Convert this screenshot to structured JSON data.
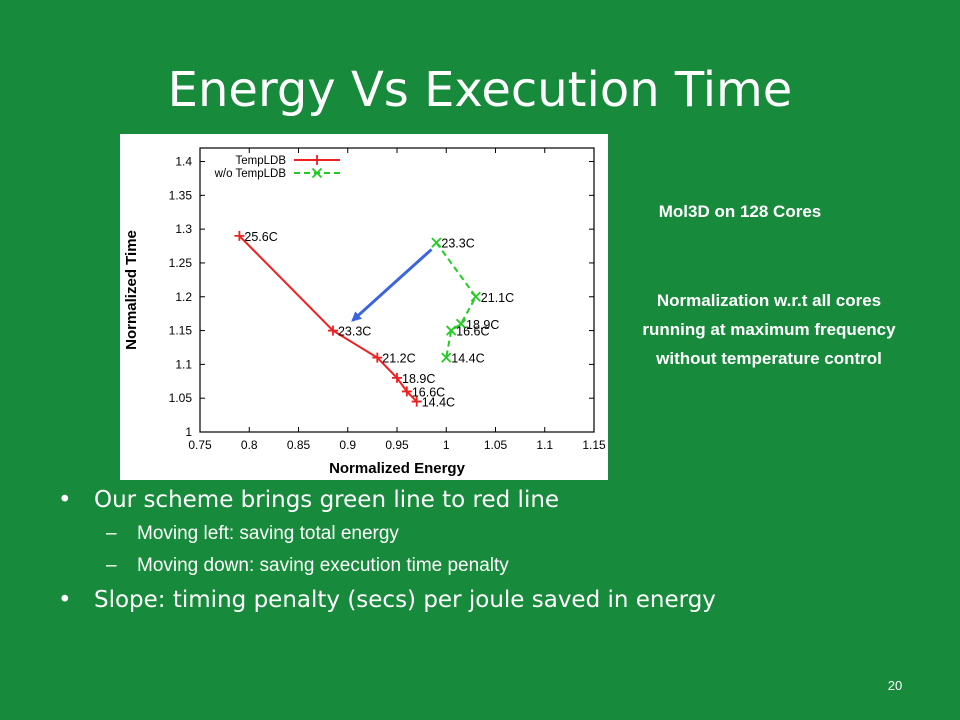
{
  "slide": {
    "title": "Energy Vs Execution Time",
    "note1": "Mol3D on 128 Cores",
    "note2": [
      "Normalization w.r.t all cores",
      "running at maximum frequency",
      "without temperature control"
    ],
    "bullets": [
      {
        "text": "Our scheme brings green line to red line",
        "sub": [
          "Moving left: saving total energy",
          "Moving down: saving execution time penalty"
        ]
      },
      {
        "text": "Slope: timing penalty (secs) per joule saved in energy",
        "sub": []
      }
    ],
    "bullet_glyph": "•",
    "dash_glyph": "–",
    "page_number": "20"
  },
  "chart_data": {
    "type": "line",
    "xlabel": "Normalized Energy",
    "ylabel": "Normalized Time",
    "xlim": [
      0.75,
      1.15
    ],
    "ylim": [
      1,
      1.42
    ],
    "xticks": [
      "0.75",
      "0.8",
      "0.85",
      "0.9",
      "0.95",
      "1",
      "1.05",
      "1.1",
      "1.15"
    ],
    "yticks": [
      "1",
      "1.05",
      "1.1",
      "1.15",
      "1.2",
      "1.25",
      "1.3",
      "1.35",
      "1.4"
    ],
    "legend_position": "top-left",
    "series": [
      {
        "name": "TempLDB",
        "color": "#f02020",
        "marker": "plus",
        "style": "solid",
        "points": [
          {
            "x": 0.79,
            "y": 1.29,
            "label": "25.6C"
          },
          {
            "x": 0.885,
            "y": 1.15,
            "label": "23.3C"
          },
          {
            "x": 0.93,
            "y": 1.11,
            "label": "21.2C"
          },
          {
            "x": 0.95,
            "y": 1.08,
            "label": "18.9C"
          },
          {
            "x": 0.96,
            "y": 1.06,
            "label": "16.6C"
          },
          {
            "x": 0.97,
            "y": 1.045,
            "label": "14.4C"
          }
        ]
      },
      {
        "name": "w/o TempLDB",
        "color": "#22cc22",
        "marker": "x",
        "style": "dashed",
        "points": [
          {
            "x": 0.99,
            "y": 1.28,
            "label": "23.3C"
          },
          {
            "x": 1.03,
            "y": 1.2,
            "label": "21.1C"
          },
          {
            "x": 1.015,
            "y": 1.16,
            "label": "18.9C"
          },
          {
            "x": 1.005,
            "y": 1.15,
            "label": "16.6C"
          },
          {
            "x": 1.0,
            "y": 1.11,
            "label": "14.4C"
          }
        ]
      }
    ],
    "annotation_arrow": {
      "from": {
        "x": 0.985,
        "y": 1.27
      },
      "to": {
        "x": 0.905,
        "y": 1.165
      },
      "color": "#3a64e0"
    }
  }
}
